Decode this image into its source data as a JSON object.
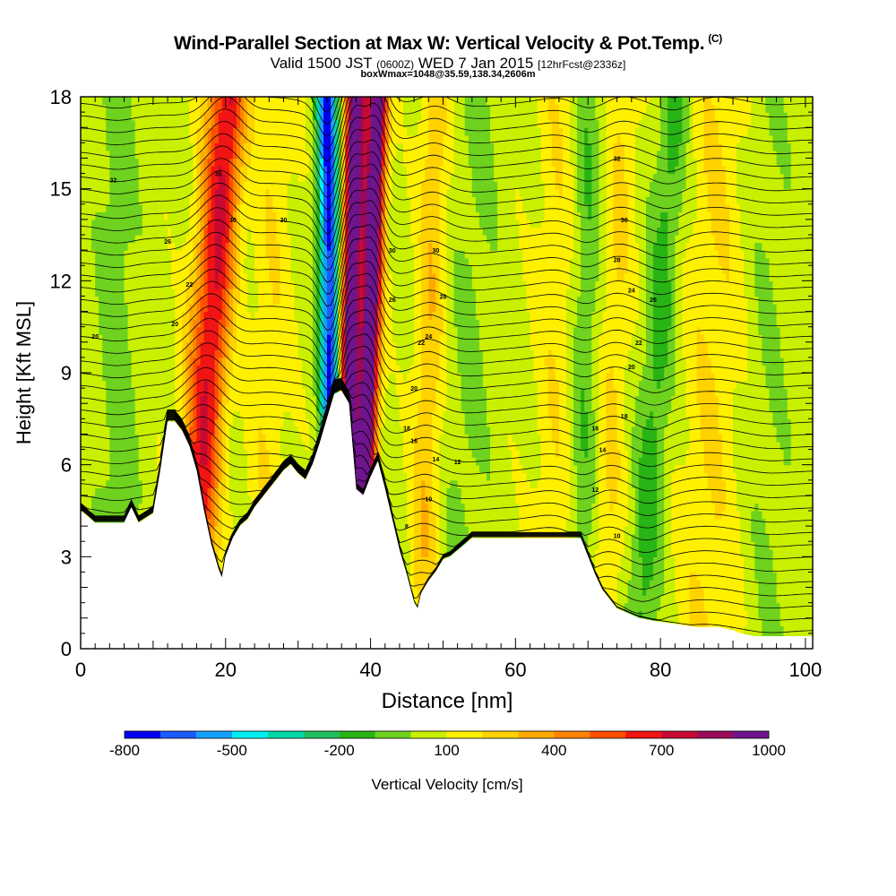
{
  "title": {
    "main": "Wind-Parallel Section at Max W: Vertical Velocity & Pot.Temp.",
    "copyright": "(C)",
    "valid_prefix": "Valid 1500 JST",
    "valid_utc": "(0600Z)",
    "valid_date": "WED 7 Jan 2015",
    "forecast": "[12hrFcst@2336z]",
    "box_wmax": "boxWmax=1048@35.59,138.34,2606m"
  },
  "chart_data": {
    "type": "heatmap",
    "xlabel": "Distance [nm]",
    "ylabel": "Height [Kft MSL]",
    "xlim": [
      0,
      101
    ],
    "ylim": [
      0,
      18
    ],
    "x_ticks": [
      "0",
      "20",
      "40",
      "60",
      "80",
      "100"
    ],
    "y_ticks": [
      "0",
      "3",
      "6",
      "9",
      "12",
      "15",
      "18"
    ],
    "colorbar": {
      "label": "Vertical Velocity [cm/s]",
      "min": -800,
      "max": 1000,
      "step": 100,
      "tick_labels": [
        "-800",
        "-500",
        "-200",
        "100",
        "400",
        "700",
        "1000"
      ],
      "colors": [
        "#0000f0",
        "#1a5cff",
        "#14a0ff",
        "#00f0f0",
        "#00d7a8",
        "#20c060",
        "#28b414",
        "#6ed21e",
        "#c8f000",
        "#fff000",
        "#ffd200",
        "#ffaa00",
        "#ff8200",
        "#ff5000",
        "#f01414",
        "#c80a32",
        "#9a0a5a",
        "#6e148c"
      ]
    },
    "terrain_kft": [
      [
        0,
        4.5
      ],
      [
        2,
        4.1
      ],
      [
        4,
        4.1
      ],
      [
        6,
        4.1
      ],
      [
        7,
        4.6
      ],
      [
        8,
        4.1
      ],
      [
        10,
        4.4
      ],
      [
        11,
        5.8
      ],
      [
        12,
        7.4
      ],
      [
        13,
        7.4
      ],
      [
        14,
        7.1
      ],
      [
        15,
        6.6
      ],
      [
        16,
        5.8
      ],
      [
        17,
        4.5
      ],
      [
        18,
        3.4
      ],
      [
        19,
        2.6
      ],
      [
        19.5,
        2.3
      ],
      [
        20,
        3.0
      ],
      [
        21,
        3.6
      ],
      [
        22,
        4.0
      ],
      [
        23,
        4.2
      ],
      [
        24,
        4.6
      ],
      [
        25,
        4.9
      ],
      [
        26,
        5.2
      ],
      [
        27,
        5.5
      ],
      [
        28,
        5.8
      ],
      [
        29,
        6.0
      ],
      [
        30,
        5.7
      ],
      [
        31,
        5.5
      ],
      [
        32,
        6.0
      ],
      [
        33,
        6.7
      ],
      [
        34,
        7.5
      ],
      [
        35,
        8.3
      ],
      [
        36,
        8.4
      ],
      [
        37,
        8.0
      ],
      [
        38,
        5.2
      ],
      [
        39,
        5.0
      ],
      [
        40,
        5.6
      ],
      [
        41,
        6.1
      ],
      [
        42,
        5.2
      ],
      [
        43,
        4.2
      ],
      [
        44,
        3.2
      ],
      [
        45,
        2.4
      ],
      [
        46,
        1.5
      ],
      [
        46.5,
        1.3
      ],
      [
        47,
        1.8
      ],
      [
        48,
        2.2
      ],
      [
        49,
        2.5
      ],
      [
        50,
        2.9
      ],
      [
        51,
        3.0
      ],
      [
        52,
        3.2
      ],
      [
        53,
        3.4
      ],
      [
        54,
        3.6
      ],
      [
        56,
        3.6
      ],
      [
        60,
        3.6
      ],
      [
        65,
        3.6
      ],
      [
        69,
        3.6
      ],
      [
        70,
        3.0
      ],
      [
        71,
        2.4
      ],
      [
        72,
        1.9
      ],
      [
        73,
        1.6
      ],
      [
        74,
        1.3
      ],
      [
        75,
        1.2
      ],
      [
        76,
        1.1
      ],
      [
        77,
        1.0
      ],
      [
        79,
        0.9
      ],
      [
        82,
        0.8
      ],
      [
        85,
        0.7
      ],
      [
        88,
        0.7
      ],
      [
        90,
        0.6
      ],
      [
        91,
        0.5
      ],
      [
        93,
        0.4
      ],
      [
        101,
        0.4
      ]
    ],
    "updraft_axes": [
      {
        "x_bottom": 13,
        "x_top": 19,
        "sign": "up",
        "strength": 300
      },
      {
        "x_bottom": 15.5,
        "x_top": 21,
        "sign": "up",
        "strength": 500
      },
      {
        "x_bottom": 36,
        "x_top": 38,
        "sign": "up",
        "strength": 1000
      },
      {
        "x_bottom": 38.5,
        "x_top": 41,
        "sign": "up",
        "strength": 1048
      },
      {
        "x_bottom": 35,
        "x_top": 34,
        "sign": "down",
        "strength": 800
      },
      {
        "x_bottom": 72,
        "x_top": 75,
        "sign": "up",
        "strength": 150
      },
      {
        "x_bottom": 77,
        "x_top": 82,
        "sign": "down",
        "strength": 200
      }
    ],
    "isentrope_labels": [
      {
        "x": 2,
        "y": 10.2,
        "label": "20"
      },
      {
        "x": 4.5,
        "y": 15.3,
        "label": "32"
      },
      {
        "x": 12,
        "y": 13.3,
        "label": "26"
      },
      {
        "x": 13,
        "y": 10.6,
        "label": "20"
      },
      {
        "x": 15,
        "y": 11.9,
        "label": "22"
      },
      {
        "x": 19,
        "y": 15.5,
        "label": "30"
      },
      {
        "x": 21,
        "y": 14.0,
        "label": "30"
      },
      {
        "x": 28,
        "y": 14.0,
        "label": "30"
      },
      {
        "x": 43,
        "y": 11.4,
        "label": "26"
      },
      {
        "x": 43,
        "y": 13.0,
        "label": "30"
      },
      {
        "x": 49,
        "y": 13.0,
        "label": "30"
      },
      {
        "x": 50,
        "y": 11.5,
        "label": "28"
      },
      {
        "x": 48,
        "y": 10.2,
        "label": "24"
      },
      {
        "x": 47,
        "y": 10.0,
        "label": "22"
      },
      {
        "x": 46,
        "y": 8.5,
        "label": "20"
      },
      {
        "x": 45,
        "y": 7.2,
        "label": "18"
      },
      {
        "x": 46,
        "y": 6.8,
        "label": "16"
      },
      {
        "x": 49,
        "y": 6.2,
        "label": "14"
      },
      {
        "x": 52,
        "y": 6.1,
        "label": "12"
      },
      {
        "x": 48,
        "y": 4.9,
        "label": "10"
      },
      {
        "x": 45,
        "y": 4.0,
        "label": "8"
      },
      {
        "x": 71,
        "y": 7.2,
        "label": "16"
      },
      {
        "x": 72,
        "y": 6.5,
        "label": "14"
      },
      {
        "x": 71,
        "y": 5.2,
        "label": "12"
      },
      {
        "x": 74,
        "y": 3.7,
        "label": "10"
      },
      {
        "x": 75,
        "y": 7.6,
        "label": "18"
      },
      {
        "x": 76,
        "y": 9.2,
        "label": "20"
      },
      {
        "x": 77,
        "y": 10.0,
        "label": "22"
      },
      {
        "x": 76,
        "y": 11.7,
        "label": "24"
      },
      {
        "x": 74,
        "y": 12.7,
        "label": "28"
      },
      {
        "x": 75,
        "y": 14.0,
        "label": "30"
      },
      {
        "x": 74,
        "y": 16.0,
        "label": "32"
      },
      {
        "x": 79,
        "y": 11.4,
        "label": "26"
      }
    ]
  }
}
